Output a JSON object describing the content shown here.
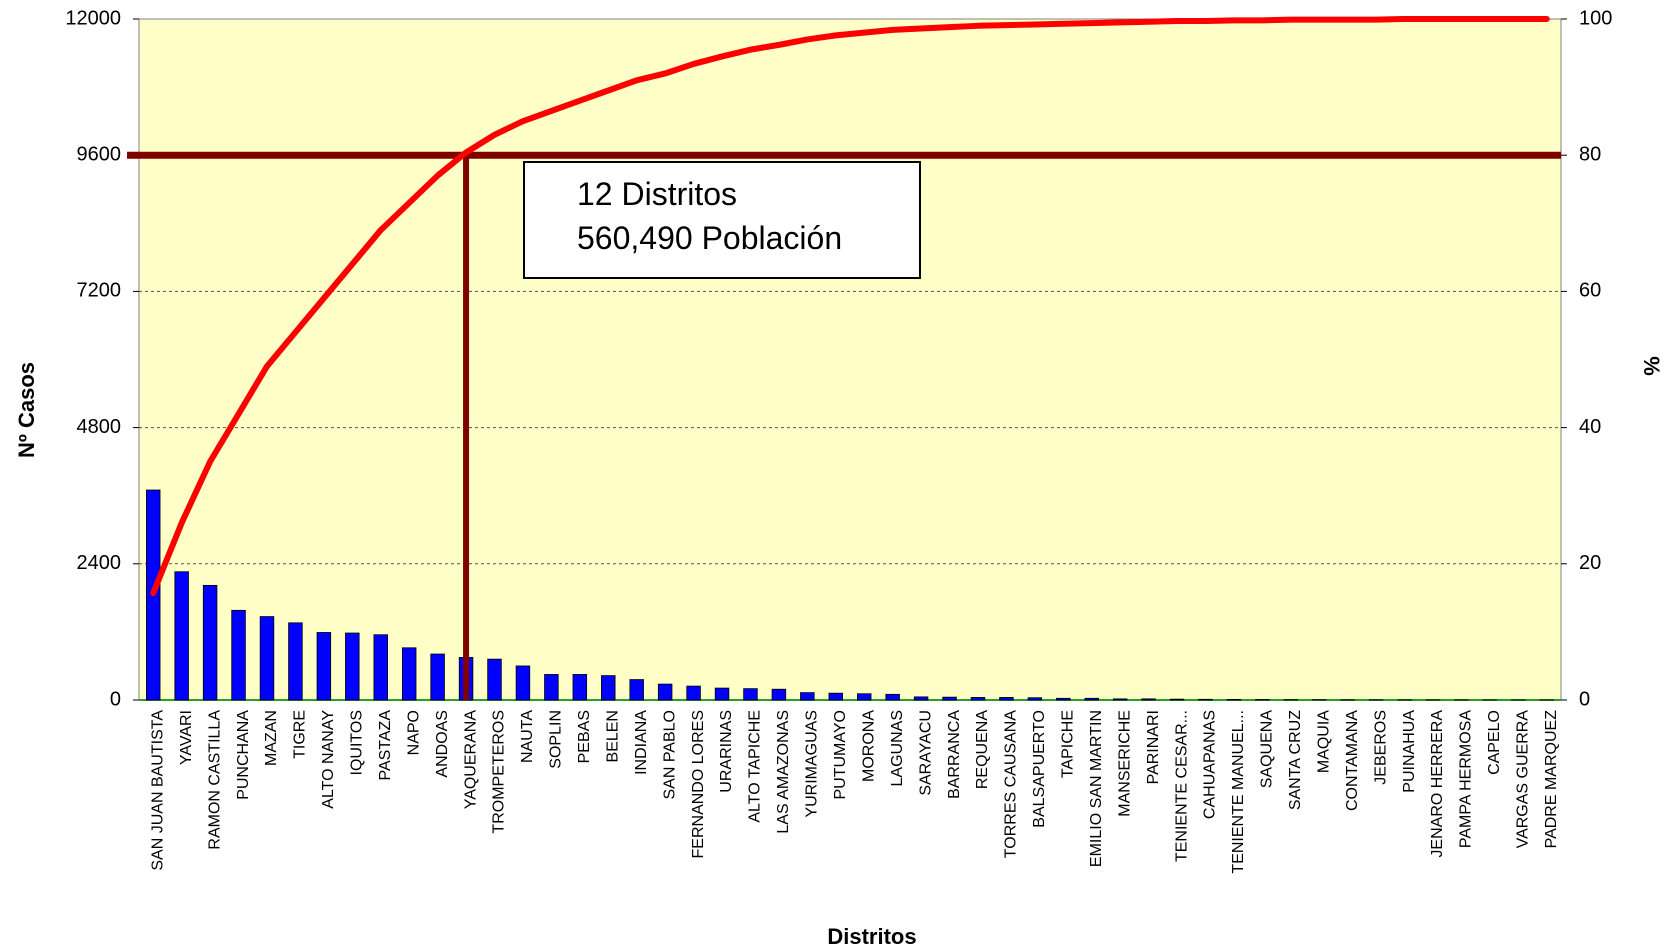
{
  "chart_data": {
    "type": "pareto",
    "x_label": "Distritos",
    "y_label": "Nº Casos",
    "y2_label": "%",
    "annotation": [
      "12 Distritos",
      "560,490  Población"
    ],
    "categories": [
      "SAN JUAN BAUTISTA",
      "YAVARI",
      "RAMON CASTILLA",
      "PUNCHANA",
      "MAZAN",
      "TIGRE",
      "ALTO NANAY",
      "IQUITOS",
      "PASTAZA",
      "NAPO",
      "ANDOAS",
      "YAQUERANA",
      "TROMPETEROS",
      "NAUTA",
      "SOPLIN",
      "PEBAS",
      "BELEN",
      "INDIANA",
      "SAN PABLO",
      "FERNANDO LORES",
      "URARINAS",
      "ALTO TAPICHE",
      "LAS AMAZONAS",
      "YURIMAGUAS",
      "PUTUMAYO",
      "MORONA",
      "LAGUNAS",
      "SARAYACU",
      "BARRANCA",
      "REQUENA",
      "TORRES CAUSANA",
      "BALSAPUERTO",
      "TAPICHE",
      "EMILIO SAN MARTIN",
      "MANSERICHE",
      "PARINARI",
      "TENIENTE CESAR...",
      "CAHUAPANAS",
      "TENIENTE MANUEL...",
      "SAQUENA",
      "SANTA CRUZ",
      "MAQUIA",
      "CONTAMANA",
      "JEBEROS",
      "PUINAHUA",
      "JENARO HERRERA",
      "PAMPA HERMOSA",
      "CAPELO",
      "VARGAS GUERRA",
      "PADRE MARQUEZ"
    ],
    "series": [
      {
        "type": "bar",
        "color": "#0000ff",
        "values": [
          3700,
          2260,
          2020,
          1580,
          1470,
          1360,
          1190,
          1180,
          1150,
          920,
          810,
          750,
          720,
          600,
          450,
          450,
          430,
          360,
          280,
          245,
          210,
          200,
          190,
          130,
          120,
          110,
          100,
          55,
          50,
          45,
          45,
          40,
          30,
          30,
          20,
          20,
          15,
          12,
          10,
          8,
          6,
          5,
          4,
          3,
          3,
          2,
          2,
          1,
          1,
          1
        ]
      },
      {
        "type": "line",
        "axis": "y2",
        "color": "#ff0000",
        "values": [
          15.7,
          26,
          35,
          42,
          49,
          54,
          59,
          64,
          69,
          73,
          77,
          80.4,
          83,
          85,
          86.5,
          88,
          89.5,
          91,
          92,
          93.4,
          94.5,
          95.5,
          96.2,
          97,
          97.6,
          98,
          98.4,
          98.6,
          98.8,
          99,
          99.1,
          99.2,
          99.3,
          99.4,
          99.5,
          99.6,
          99.7,
          99.7,
          99.8,
          99.8,
          99.9,
          99.9,
          99.9,
          99.9,
          100,
          100,
          100,
          100,
          100,
          100
        ]
      }
    ],
    "threshold": {
      "value": 80,
      "color": "#800000"
    },
    "ylim": [
      0,
      12000
    ],
    "yticks": [
      0,
      2400,
      4800,
      7200,
      9600,
      12000
    ],
    "y2lim": [
      0,
      100
    ],
    "y2ticks": [
      0,
      20,
      40,
      60,
      80,
      100
    ],
    "grid": true,
    "background": "#ffffc8"
  }
}
